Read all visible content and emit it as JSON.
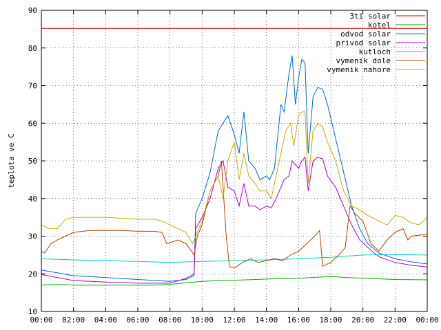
{
  "chart_data": {
    "type": "line",
    "ylabel": "teplota ve C",
    "xlabel": "",
    "title": "",
    "ylim": [
      10,
      90
    ],
    "yticks": [
      10,
      20,
      30,
      40,
      50,
      60,
      70,
      80,
      90
    ],
    "xlim": [
      0,
      24
    ],
    "xticks": [
      {
        "h": 0,
        "label": "00:00"
      },
      {
        "h": 2,
        "label": "02:00"
      },
      {
        "h": 4,
        "label": "04:00"
      },
      {
        "h": 6,
        "label": "06:00"
      },
      {
        "h": 8,
        "label": "08:00"
      },
      {
        "h": 10,
        "label": "10:00"
      },
      {
        "h": 12,
        "label": "12:00"
      },
      {
        "h": 14,
        "label": "14:00"
      },
      {
        "h": 16,
        "label": "16:00"
      },
      {
        "h": 18,
        "label": "18:00"
      },
      {
        "h": 20,
        "label": "20:00"
      },
      {
        "h": 22,
        "label": "22:00"
      },
      {
        "h": 24,
        "label": "00:00"
      }
    ],
    "grid": true,
    "legend_position": "top-right",
    "series": [
      {
        "name": "3ti solar",
        "color": "#cc0000",
        "points": [
          [
            0,
            85.2
          ],
          [
            24,
            85.2
          ]
        ]
      },
      {
        "name": "kotel",
        "color": "#00aa00",
        "points": [
          [
            0,
            17.0
          ],
          [
            1,
            17.2
          ],
          [
            2,
            17.0
          ],
          [
            4,
            17.0
          ],
          [
            6,
            17.0
          ],
          [
            7,
            17.0
          ],
          [
            8,
            17.2
          ],
          [
            9,
            17.6
          ],
          [
            10,
            18.0
          ],
          [
            11,
            18.2
          ],
          [
            12,
            18.3
          ],
          [
            14,
            18.6
          ],
          [
            16,
            18.8
          ],
          [
            18,
            19.3
          ],
          [
            19,
            19.0
          ],
          [
            20,
            18.8
          ],
          [
            22,
            18.5
          ],
          [
            24,
            18.4
          ]
        ]
      },
      {
        "name": "odvod solar",
        "color": "#0066cc",
        "points": [
          [
            0,
            21.0
          ],
          [
            2,
            19.5
          ],
          [
            4,
            19.0
          ],
          [
            6,
            18.5
          ],
          [
            8,
            18.0
          ],
          [
            9,
            18.5
          ],
          [
            9.5,
            19.5
          ],
          [
            9.6,
            36
          ],
          [
            10,
            40
          ],
          [
            10.5,
            47
          ],
          [
            11,
            58
          ],
          [
            11.3,
            60
          ],
          [
            11.6,
            62
          ],
          [
            12,
            57
          ],
          [
            12.3,
            52
          ],
          [
            12.6,
            63
          ],
          [
            12.9,
            50
          ],
          [
            13.3,
            48
          ],
          [
            13.6,
            45
          ],
          [
            14,
            46
          ],
          [
            14.2,
            45
          ],
          [
            14.5,
            48
          ],
          [
            14.9,
            65
          ],
          [
            15.1,
            63
          ],
          [
            15.4,
            73
          ],
          [
            15.6,
            78
          ],
          [
            15.8,
            65
          ],
          [
            16.0,
            72
          ],
          [
            16.2,
            77
          ],
          [
            16.4,
            76
          ],
          [
            16.6,
            52
          ],
          [
            16.9,
            67
          ],
          [
            17.2,
            69.5
          ],
          [
            17.5,
            69
          ],
          [
            17.8,
            65
          ],
          [
            18.3,
            56
          ],
          [
            18.8,
            47
          ],
          [
            19.3,
            38
          ],
          [
            19.8,
            32
          ],
          [
            20.3,
            28
          ],
          [
            21,
            25.5
          ],
          [
            22,
            24
          ],
          [
            23,
            23.2
          ],
          [
            24,
            22.6
          ]
        ]
      },
      {
        "name": "privod solar",
        "color": "#aa00cc",
        "points": [
          [
            0,
            19.8
          ],
          [
            2,
            18.2
          ],
          [
            4,
            17.8
          ],
          [
            6,
            17.5
          ],
          [
            8,
            17.5
          ],
          [
            9,
            18.8
          ],
          [
            9.5,
            20
          ],
          [
            9.6,
            32
          ],
          [
            10,
            35
          ],
          [
            10.5,
            40
          ],
          [
            11,
            48
          ],
          [
            11.3,
            50
          ],
          [
            11.6,
            43
          ],
          [
            12,
            42
          ],
          [
            12.3,
            38
          ],
          [
            12.6,
            44
          ],
          [
            12.9,
            38
          ],
          [
            13.3,
            38
          ],
          [
            13.6,
            37
          ],
          [
            14,
            38
          ],
          [
            14.3,
            37.5
          ],
          [
            14.6,
            40
          ],
          [
            14.9,
            43
          ],
          [
            15.1,
            45
          ],
          [
            15.4,
            46
          ],
          [
            15.6,
            50
          ],
          [
            16.0,
            48
          ],
          [
            16.2,
            50
          ],
          [
            16.4,
            51
          ],
          [
            16.6,
            42
          ],
          [
            16.9,
            50
          ],
          [
            17.2,
            51
          ],
          [
            17.5,
            50.5
          ],
          [
            17.8,
            46
          ],
          [
            18.3,
            43
          ],
          [
            18.8,
            38
          ],
          [
            19.3,
            33
          ],
          [
            19.8,
            29
          ],
          [
            20.3,
            27
          ],
          [
            21,
            24.5
          ],
          [
            22,
            23
          ],
          [
            23,
            22.3
          ],
          [
            24,
            21.8
          ]
        ]
      },
      {
        "name": "kutloch",
        "color": "#00cccc",
        "points": [
          [
            0,
            24
          ],
          [
            2,
            23.7
          ],
          [
            4,
            23.5
          ],
          [
            6,
            23.3
          ],
          [
            8,
            23.0
          ],
          [
            10,
            23.3
          ],
          [
            12,
            23.5
          ],
          [
            14,
            23.7
          ],
          [
            16,
            24
          ],
          [
            18,
            24.4
          ],
          [
            20,
            25
          ],
          [
            22,
            25.1
          ],
          [
            24,
            25
          ]
        ]
      },
      {
        "name": "vymenik dole",
        "color": "#aa4400",
        "points": [
          [
            0,
            26
          ],
          [
            0.2,
            25.5
          ],
          [
            0.6,
            28
          ],
          [
            1,
            29
          ],
          [
            1.5,
            30
          ],
          [
            2,
            31
          ],
          [
            3,
            31.5
          ],
          [
            4,
            31.5
          ],
          [
            5,
            31.5
          ],
          [
            6,
            31.3
          ],
          [
            7,
            31.3
          ],
          [
            7.5,
            31
          ],
          [
            7.8,
            28
          ],
          [
            8.5,
            29
          ],
          [
            9,
            28
          ],
          [
            9.5,
            25
          ],
          [
            9.7,
            30
          ],
          [
            10,
            33
          ],
          [
            10.5,
            42
          ],
          [
            11,
            46
          ],
          [
            11.2,
            50
          ],
          [
            11.5,
            30
          ],
          [
            11.7,
            22
          ],
          [
            12,
            21.5
          ],
          [
            12.5,
            23
          ],
          [
            13,
            24
          ],
          [
            13.5,
            23
          ],
          [
            14,
            23.5
          ],
          [
            14.5,
            24
          ],
          [
            15,
            23.5
          ],
          [
            15.5,
            25
          ],
          [
            16,
            26
          ],
          [
            16.5,
            28
          ],
          [
            17,
            30
          ],
          [
            17.3,
            31.5
          ],
          [
            17.5,
            22
          ],
          [
            18,
            23
          ],
          [
            18.5,
            25
          ],
          [
            18.9,
            27
          ],
          [
            19.2,
            38
          ],
          [
            19.5,
            36
          ],
          [
            20,
            34
          ],
          [
            20.5,
            28
          ],
          [
            21,
            26
          ],
          [
            21.5,
            29
          ],
          [
            22,
            31
          ],
          [
            22.5,
            32
          ],
          [
            22.8,
            29
          ],
          [
            23,
            30
          ],
          [
            24,
            30.5
          ]
        ]
      },
      {
        "name": "vymenik nahore",
        "color": "#ccaa00",
        "points": [
          [
            0,
            33
          ],
          [
            0.5,
            32
          ],
          [
            1,
            32
          ],
          [
            1.5,
            34.5
          ],
          [
            2,
            35
          ],
          [
            3,
            35
          ],
          [
            4,
            35
          ],
          [
            6,
            34.5
          ],
          [
            7,
            34.5
          ],
          [
            7.5,
            34
          ],
          [
            8,
            33
          ],
          [
            8.5,
            32
          ],
          [
            9,
            31
          ],
          [
            9.4,
            28
          ],
          [
            9.6,
            30
          ],
          [
            10,
            34
          ],
          [
            10.5,
            42
          ],
          [
            11,
            46
          ],
          [
            11.3,
            40
          ],
          [
            11.6,
            50
          ],
          [
            12,
            55
          ],
          [
            12.3,
            45
          ],
          [
            12.6,
            52
          ],
          [
            12.9,
            46
          ],
          [
            13.3,
            44
          ],
          [
            13.6,
            42
          ],
          [
            14,
            42
          ],
          [
            14.3,
            40
          ],
          [
            14.6,
            46
          ],
          [
            14.9,
            52
          ],
          [
            15.2,
            58
          ],
          [
            15.5,
            60
          ],
          [
            15.7,
            54
          ],
          [
            16.0,
            62
          ],
          [
            16.2,
            63
          ],
          [
            16.4,
            63
          ],
          [
            16.6,
            44
          ],
          [
            16.9,
            58
          ],
          [
            17.2,
            60
          ],
          [
            17.5,
            59
          ],
          [
            17.8,
            55
          ],
          [
            18.3,
            50
          ],
          [
            18.8,
            42
          ],
          [
            19.3,
            38
          ],
          [
            19.8,
            37
          ],
          [
            20.3,
            35.5
          ],
          [
            21,
            34
          ],
          [
            21.5,
            33
          ],
          [
            22,
            35.5
          ],
          [
            22.5,
            35
          ],
          [
            23,
            33.5
          ],
          [
            23.5,
            33
          ],
          [
            24,
            35
          ]
        ]
      }
    ]
  }
}
